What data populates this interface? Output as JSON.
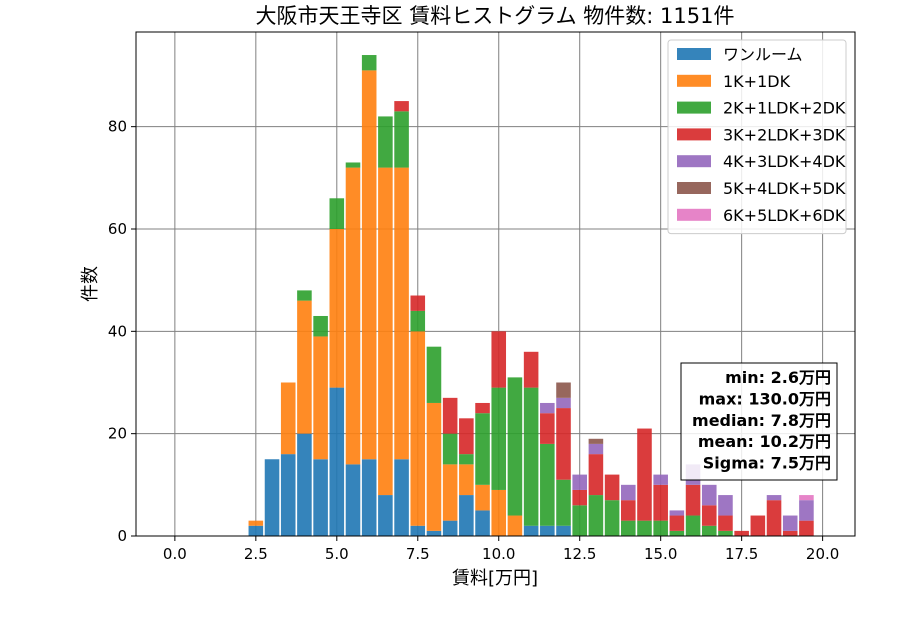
{
  "chart_data": {
    "type": "bar",
    "stacked": true,
    "title": "大阪市天王寺区 賃料ヒストグラム 物件数: 1151件",
    "xlabel": "賃料[万円]",
    "ylabel": "件数",
    "xlim": [
      -1.2,
      21.0
    ],
    "ylim": [
      0,
      98.5
    ],
    "xticks": [
      "0.0",
      "2.5",
      "5.0",
      "7.5",
      "10.0",
      "12.5",
      "15.0",
      "17.5",
      "20.0"
    ],
    "yticks": [
      "0",
      "20",
      "40",
      "60",
      "80"
    ],
    "grid": true,
    "legend_position": "top-right",
    "bin_width": 0.5,
    "x": [
      2.5,
      3.0,
      3.5,
      4.0,
      4.5,
      5.0,
      5.5,
      6.0,
      6.5,
      7.0,
      7.5,
      8.0,
      8.5,
      9.0,
      9.5,
      10.0,
      10.5,
      11.0,
      11.5,
      12.0,
      12.5,
      13.0,
      13.5,
      14.0,
      14.5,
      15.0,
      15.5,
      16.0,
      16.5,
      17.0,
      17.5,
      18.0,
      18.5,
      19.0,
      19.5
    ],
    "series": [
      {
        "name": "ワンルーム",
        "color": "#1f77b4",
        "values": [
          2,
          15,
          16,
          20,
          15,
          29,
          14,
          15,
          8,
          15,
          2,
          1,
          3,
          8,
          5,
          0,
          0,
          2,
          2,
          2,
          0,
          0,
          0,
          0,
          0,
          0,
          0,
          0,
          0,
          0,
          0,
          0,
          0,
          0,
          0
        ]
      },
      {
        "name": "1K+1DK",
        "color": "#ff7f0e",
        "values": [
          1,
          0,
          14,
          26,
          24,
          31,
          58,
          76,
          64,
          57,
          38,
          25,
          11,
          6,
          5,
          9,
          4,
          0,
          0,
          0,
          0,
          0,
          0,
          0,
          0,
          0,
          0,
          0,
          0,
          0,
          0,
          0,
          0,
          0,
          0
        ]
      },
      {
        "name": "2K+1LDK+2DK",
        "color": "#2ca02c",
        "values": [
          0,
          0,
          0,
          2,
          4,
          6,
          1,
          3,
          10,
          11,
          4,
          11,
          6,
          2,
          14,
          20,
          27,
          27,
          16,
          9,
          6,
          8,
          7,
          3,
          3,
          3,
          1,
          4,
          2,
          1,
          0,
          0,
          0,
          0,
          0
        ]
      },
      {
        "name": "3K+2LDK+3DK",
        "color": "#d62728",
        "values": [
          0,
          0,
          0,
          0,
          0,
          0,
          0,
          0,
          0,
          2,
          3,
          0,
          7,
          7,
          2,
          11,
          0,
          7,
          6,
          14,
          3,
          8,
          5,
          4,
          18,
          7,
          3,
          6,
          4,
          3,
          1,
          4,
          7,
          1,
          3
        ]
      },
      {
        "name": "4K+3LDK+4DK",
        "color": "#9467bd",
        "values": [
          0,
          0,
          0,
          0,
          0,
          0,
          0,
          0,
          0,
          0,
          0,
          0,
          0,
          0,
          0,
          0,
          0,
          0,
          2,
          2,
          3,
          2,
          0,
          3,
          0,
          2,
          1,
          4,
          4,
          4,
          0,
          0,
          1,
          3,
          4
        ]
      },
      {
        "name": "5K+4LDK+5DK",
        "color": "#8c564b",
        "values": [
          0,
          0,
          0,
          0,
          0,
          0,
          0,
          0,
          0,
          0,
          0,
          0,
          0,
          0,
          0,
          0,
          0,
          0,
          0,
          3,
          0,
          1,
          0,
          0,
          0,
          0,
          0,
          0,
          0,
          0,
          0,
          0,
          0,
          0,
          0
        ]
      },
      {
        "name": "6K+5LDK+6DK",
        "color": "#e377c2",
        "values": [
          0,
          0,
          0,
          0,
          0,
          0,
          0,
          0,
          0,
          0,
          0,
          0,
          0,
          0,
          0,
          0,
          0,
          0,
          0,
          0,
          0,
          0,
          0,
          0,
          0,
          0,
          0,
          0,
          0,
          0,
          0,
          0,
          0,
          0,
          1
        ]
      }
    ],
    "stats": [
      "min: 2.6万円",
      "max: 130.0万円",
      "median: 7.8万円",
      "mean: 10.2万円",
      "Sigma: 7.5万円"
    ]
  }
}
